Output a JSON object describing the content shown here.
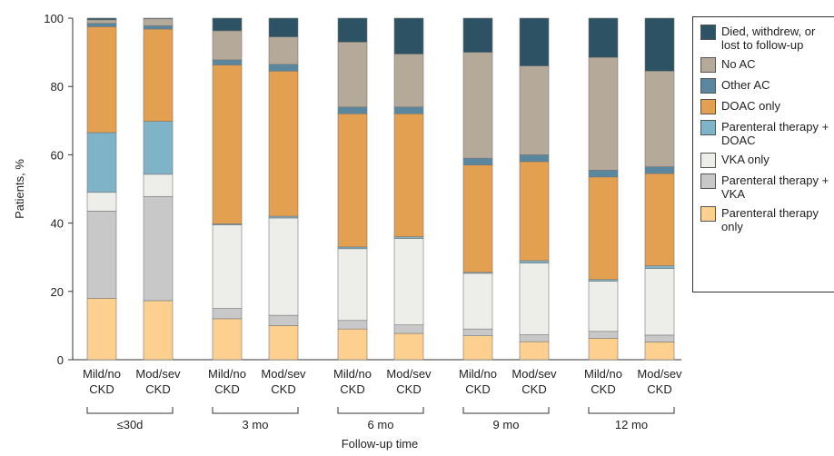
{
  "chart_data": {
    "type": "stacked-bar",
    "y_label": "Patients, %",
    "x_label": "Follow-up time",
    "categories": [
      "Mild/no CKD",
      "Mod/sev CKD",
      "Mild/no CKD",
      "Mod/sev CKD",
      "Mild/no CKD",
      "Mod/sev CKD",
      "Mild/no CKD",
      "Mod/sev CKD",
      "Mild/no CKD",
      "Mod/sev CKD"
    ],
    "groups": [
      "≤30d",
      "3 mo",
      "6 mo",
      "9 mo",
      "12 mo"
    ],
    "ylim": [
      0,
      100
    ],
    "yticks": [
      0,
      20,
      40,
      60,
      80,
      100
    ],
    "series": [
      {
        "name": "Parenteral therapy only",
        "color": "#fdd08f",
        "values": [
          18,
          17.3,
          12,
          10,
          9,
          7.7,
          7,
          5.3,
          6.3,
          5.2
        ]
      },
      {
        "name": "Parenteral therapy + VKA",
        "color": "#c8c8c8",
        "values": [
          25.5,
          30.5,
          3,
          3,
          2.5,
          2.5,
          2,
          2,
          2,
          2
        ]
      },
      {
        "name": "VKA only",
        "color": "#ededea",
        "values": [
          5.5,
          6.5,
          24.5,
          28.5,
          21,
          25.3,
          16.3,
          21,
          14.7,
          19.5
        ]
      },
      {
        "name": "Parenteral therapy + DOAC",
        "color": "#7fb3c8",
        "values": [
          17.5,
          15.5,
          0.3,
          0.5,
          0.5,
          0.5,
          0.3,
          0.7,
          0.5,
          0.8
        ]
      },
      {
        "name": "DOAC only",
        "color": "#e3a050",
        "values": [
          31,
          27,
          46.5,
          42.5,
          39,
          36,
          31.4,
          29,
          30,
          27
        ]
      },
      {
        "name": "Other AC",
        "color": "#5b879e",
        "values": [
          1,
          1,
          1.5,
          2,
          2,
          2,
          2,
          2,
          2,
          2
        ]
      },
      {
        "name": "No AC",
        "color": "#b5aa9a",
        "values": [
          1,
          2,
          8.5,
          8,
          19,
          15.5,
          31,
          26,
          33,
          28
        ]
      },
      {
        "name": "Died, withdrew, or lost to follow-up",
        "color": "#2c5263",
        "values": [
          0.5,
          0.2,
          3.7,
          5.5,
          7,
          10.5,
          10,
          14,
          11.5,
          15.5
        ]
      }
    ]
  }
}
